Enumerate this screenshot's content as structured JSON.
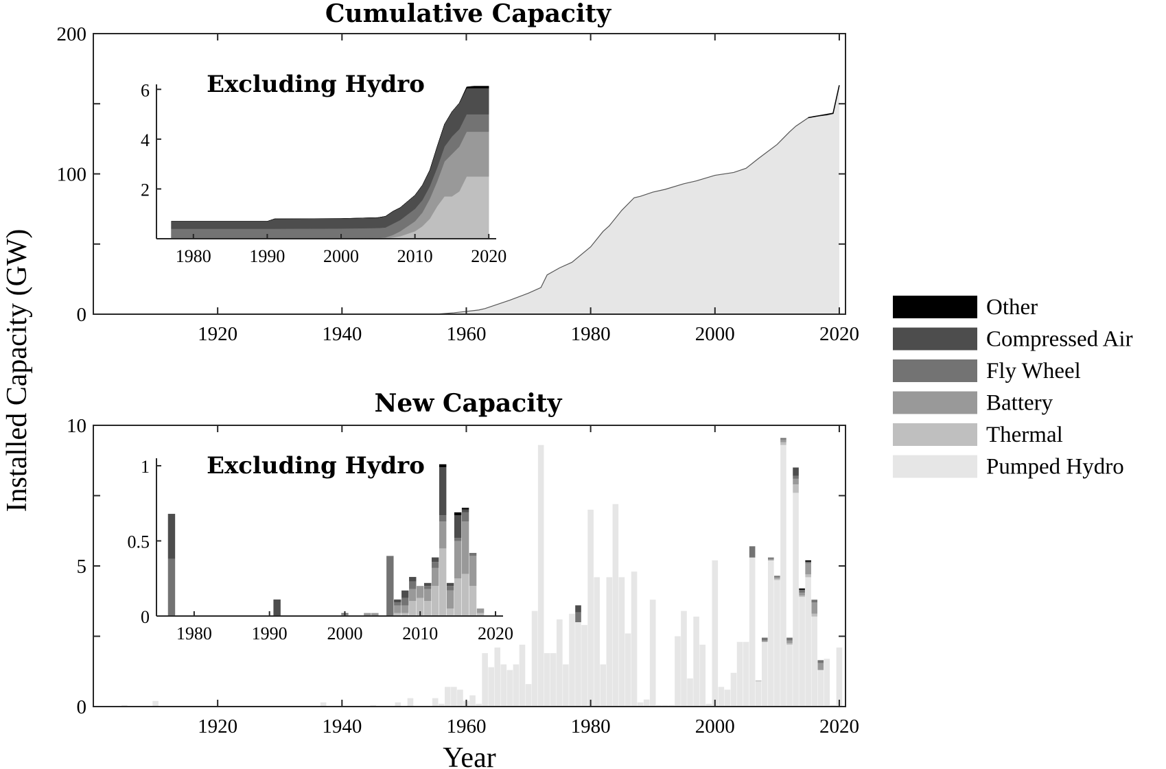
{
  "figure": {
    "ylabel": "Installed Capacity (GW)",
    "xlabel": "Year"
  },
  "legend": {
    "placement": "right",
    "items": [
      {
        "label": "Other",
        "color": "#000000"
      },
      {
        "label": "Compressed Air",
        "color": "#4d4d4d"
      },
      {
        "label": "Fly Wheel",
        "color": "#737373"
      },
      {
        "label": "Battery",
        "color": "#999999"
      },
      {
        "label": "Thermal",
        "color": "#bfbfbf"
      },
      {
        "label": "Pumped Hydro",
        "color": "#e6e6e6"
      }
    ]
  },
  "chart_data": [
    {
      "id": "cumulative-main",
      "type": "area",
      "title": "Cumulative Capacity",
      "xlim": [
        1900,
        2021
      ],
      "ylim": [
        0,
        200
      ],
      "xticks": [
        1920,
        1940,
        1960,
        1980,
        2000,
        2020
      ],
      "yticks": [
        0,
        100,
        200
      ],
      "yticks_unlabeled": [
        50,
        150
      ],
      "series": [
        {
          "name": "Pumped Hydro",
          "x": [
            1900,
            1955,
            1958,
            1960,
            1962,
            1963,
            1965,
            1967,
            1970,
            1972,
            1973,
            1975,
            1977,
            1980,
            1982,
            1983,
            1985,
            1987,
            1988,
            1990,
            1992,
            1995,
            1997,
            2000,
            2003,
            2005,
            2007,
            2010,
            2012,
            2013,
            2015,
            2016,
            2018,
            2019,
            2020
          ],
          "y": [
            0,
            0,
            1,
            2,
            3,
            4,
            7,
            10,
            15,
            19,
            28,
            33,
            37,
            48,
            59,
            63,
            74,
            83,
            84,
            87,
            89,
            93,
            95,
            99,
            101,
            104,
            111,
            121,
            130,
            134,
            140,
            141,
            142,
            143,
            163
          ]
        },
        {
          "name": "Other",
          "x": [
            2015,
            2019,
            2020
          ],
          "y": [
            0.1,
            0.2,
            0.2
          ]
        }
      ]
    },
    {
      "id": "cumulative-inset",
      "type": "area",
      "title": "Excluding Hydro",
      "xlim": [
        1975,
        2021
      ],
      "ylim": [
        0,
        6.2
      ],
      "xticks": [
        1980,
        1990,
        2000,
        2010,
        2020
      ],
      "yticks": [
        2,
        4,
        6
      ],
      "x": [
        1977,
        1978,
        1990,
        1991,
        2000,
        2005,
        2006,
        2007,
        2008,
        2010,
        2011,
        2012,
        2013,
        2014,
        2015,
        2016,
        2017,
        2018,
        2019,
        2020
      ],
      "series": [
        {
          "name": "Pumped Hydro",
          "values": [
            0,
            0,
            0,
            0,
            0,
            0,
            0,
            0,
            0,
            0,
            0,
            0,
            0,
            0,
            0,
            0,
            0,
            0,
            0,
            0
          ]
        },
        {
          "name": "Thermal",
          "values": [
            0,
            0,
            0,
            0,
            0,
            0,
            0,
            0.05,
            0.1,
            0.3,
            0.5,
            0.8,
            1.3,
            1.7,
            1.7,
            1.9,
            2.5,
            2.5,
            2.5,
            2.5
          ]
        },
        {
          "name": "Battery",
          "values": [
            0,
            0,
            0,
            0,
            0.01,
            0.03,
            0.05,
            0.1,
            0.2,
            0.4,
            0.55,
            0.8,
            1.0,
            1.4,
            1.7,
            1.8,
            1.8,
            1.8,
            1.8,
            1.8
          ]
        },
        {
          "name": "Fly Wheel",
          "values": [
            0.4,
            0.4,
            0.4,
            0.4,
            0.4,
            0.4,
            0.4,
            0.45,
            0.45,
            0.5,
            0.5,
            0.5,
            0.55,
            0.6,
            0.7,
            0.7,
            0.7,
            0.7,
            0.7,
            0.7
          ]
        },
        {
          "name": "Compressed Air",
          "values": [
            0.3,
            0.3,
            0.3,
            0.4,
            0.4,
            0.42,
            0.45,
            0.5,
            0.5,
            0.55,
            0.6,
            0.65,
            0.85,
            0.9,
            1.0,
            1.05,
            1.05,
            1.05,
            1.05,
            1.05
          ]
        },
        {
          "name": "Other",
          "values": [
            0,
            0,
            0,
            0,
            0,
            0,
            0,
            0,
            0,
            0,
            0,
            0,
            0,
            0,
            0,
            0,
            0.05,
            0.08,
            0.08,
            0.08
          ]
        }
      ]
    },
    {
      "id": "new-main",
      "type": "bar",
      "title": "New Capacity",
      "xlim": [
        1900,
        2021
      ],
      "ylim": [
        0,
        10
      ],
      "xticks": [
        1920,
        1940,
        1960,
        1980,
        2000,
        2020
      ],
      "yticks": [
        0,
        5,
        10
      ],
      "yticks_unlabeled": [
        2.5,
        7.5
      ],
      "x": [
        1905,
        1910,
        1937,
        1945,
        1949,
        1951,
        1955,
        1956,
        1957,
        1958,
        1959,
        1960,
        1961,
        1962,
        1963,
        1964,
        1965,
        1966,
        1967,
        1968,
        1969,
        1970,
        1971,
        1972,
        1973,
        1974,
        1975,
        1976,
        1977,
        1978,
        1979,
        1980,
        1981,
        1982,
        1983,
        1984,
        1985,
        1986,
        1987,
        1988,
        1989,
        1990,
        1991,
        1992,
        1993,
        1994,
        1995,
        1996,
        1997,
        1998,
        1999,
        2000,
        2001,
        2002,
        2003,
        2004,
        2005,
        2006,
        2007,
        2008,
        2009,
        2010,
        2011,
        2012,
        2013,
        2014,
        2015,
        2016,
        2017,
        2018,
        2019,
        2020
      ],
      "series": [
        {
          "name": "Pumped Hydro",
          "values": [
            0.05,
            0.2,
            0.15,
            0.05,
            0.15,
            0.3,
            0.3,
            0.1,
            0.7,
            0.7,
            0.6,
            0.2,
            0.4,
            0.1,
            1.9,
            1.4,
            2.1,
            1.5,
            1.3,
            1.5,
            2.2,
            0.8,
            3.4,
            9.3,
            1.9,
            1.9,
            3.1,
            1.5,
            3.3,
            3.0,
            2.9,
            7.0,
            4.6,
            1.5,
            4.6,
            7.2,
            4.6,
            2.6,
            4.8,
            0.15,
            0.25,
            3.8,
            0.05,
            0.05,
            0.05,
            2.5,
            3.4,
            1.0,
            3.2,
            2.2,
            0.1,
            5.2,
            0.7,
            0.6,
            1.2,
            2.3,
            2.3,
            5.3,
            0.9,
            2.3,
            5.2,
            4.5,
            9.3,
            2.2,
            7.6,
            3.9,
            4.6,
            3.2,
            1.3,
            1.7,
            0.05,
            2.1
          ]
        },
        {
          "name": "Thermal",
          "values": [
            0,
            0,
            0,
            0,
            0,
            0,
            0,
            0,
            0,
            0,
            0,
            0,
            0,
            0,
            0,
            0,
            0,
            0,
            0,
            0,
            0,
            0,
            0,
            0,
            0,
            0,
            0,
            0,
            0,
            0,
            0,
            0,
            0,
            0,
            0,
            0,
            0,
            0,
            0,
            0,
            0,
            0,
            0,
            0,
            0,
            0,
            0,
            0,
            0,
            0,
            0,
            0,
            0,
            0,
            0,
            0,
            0,
            0,
            0,
            0,
            0,
            0.05,
            0.1,
            0.05,
            0.3,
            0.05,
            0.1,
            0.1,
            0,
            0,
            0,
            0
          ]
        },
        {
          "name": "Battery",
          "values": [
            0,
            0,
            0,
            0,
            0,
            0,
            0,
            0,
            0,
            0,
            0,
            0,
            0,
            0,
            0,
            0,
            0,
            0,
            0,
            0,
            0,
            0,
            0,
            0,
            0,
            0,
            0,
            0,
            0,
            0,
            0,
            0,
            0,
            0,
            0,
            0,
            0,
            0,
            0,
            0,
            0,
            0,
            0,
            0,
            0,
            0,
            0,
            0,
            0,
            0,
            0,
            0,
            0,
            0,
            0,
            0,
            0,
            0,
            0.02,
            0.05,
            0.05,
            0.05,
            0.1,
            0.1,
            0.2,
            0.1,
            0.4,
            0.4,
            0.25,
            0,
            0,
            0
          ]
        },
        {
          "name": "Fly Wheel",
          "values": [
            0,
            0,
            0,
            0,
            0,
            0,
            0,
            0,
            0,
            0,
            0,
            0,
            0,
            0,
            0,
            0,
            0,
            0,
            0,
            0,
            0,
            0,
            0,
            0,
            0,
            0,
            0,
            0,
            0,
            0.35,
            0,
            0,
            0,
            0,
            0,
            0,
            0,
            0,
            0,
            0,
            0,
            0,
            0,
            0,
            0,
            0,
            0,
            0,
            0,
            0,
            0,
            0,
            0,
            0,
            0,
            0,
            0,
            0.4,
            0,
            0.1,
            0.05,
            0.05,
            0.05,
            0.1,
            0.1,
            0.1,
            0.05,
            0.1,
            0.1,
            0,
            0,
            0
          ]
        },
        {
          "name": "Compressed Air",
          "values": [
            0,
            0,
            0,
            0,
            0,
            0,
            0,
            0,
            0,
            0,
            0,
            0,
            0,
            0,
            0,
            0,
            0,
            0,
            0,
            0,
            0,
            0,
            0,
            0,
            0,
            0,
            0,
            0,
            0,
            0.25,
            0,
            0,
            0,
            0,
            0,
            0,
            0,
            0,
            0,
            0,
            0,
            0,
            0,
            0,
            0,
            0,
            0,
            0,
            0,
            0,
            0,
            0,
            0,
            0,
            0,
            0,
            0,
            0,
            0,
            0,
            0,
            0,
            0,
            0,
            0.3,
            0,
            0,
            0,
            0,
            0,
            0,
            0
          ]
        },
        {
          "name": "Other",
          "values": [
            0,
            0,
            0,
            0,
            0,
            0,
            0,
            0,
            0,
            0,
            0,
            0,
            0,
            0,
            0,
            0,
            0,
            0,
            0,
            0,
            0,
            0,
            0,
            0,
            0,
            0,
            0,
            0,
            0,
            0,
            0,
            0,
            0,
            0,
            0,
            0,
            0,
            0,
            0,
            0,
            0,
            0,
            0,
            0,
            0,
            0,
            0,
            0,
            0,
            0,
            0,
            0,
            0,
            0,
            0,
            0,
            0,
            0,
            0,
            0,
            0,
            0,
            0,
            0,
            0,
            0.05,
            0.05,
            0,
            0,
            0,
            0,
            0
          ]
        }
      ]
    },
    {
      "id": "new-inset",
      "type": "bar",
      "title": "Excluding Hydro",
      "xlim": [
        1975,
        2021
      ],
      "ylim": [
        0,
        1.05
      ],
      "xticks": [
        1980,
        1990,
        2000,
        2010,
        2020
      ],
      "yticks": [
        0,
        0.5,
        1
      ],
      "x": [
        1977,
        1991,
        2000,
        2003,
        2004,
        2006,
        2007,
        2008,
        2009,
        2010,
        2011,
        2012,
        2013,
        2014,
        2015,
        2016,
        2017,
        2018
      ],
      "series": [
        {
          "name": "Pumped Hydro",
          "values": [
            0,
            0,
            0,
            0,
            0,
            0,
            0,
            0,
            0,
            0,
            0,
            0,
            0,
            0,
            0,
            0,
            0,
            0
          ]
        },
        {
          "name": "Thermal",
          "values": [
            0,
            0,
            0,
            0,
            0,
            0,
            0.02,
            0.02,
            0.1,
            0.12,
            0.1,
            0.2,
            0.45,
            0.05,
            0.25,
            0.28,
            0.2,
            0.02
          ]
        },
        {
          "name": "Battery",
          "values": [
            0,
            0,
            0.01,
            0.02,
            0.02,
            0,
            0.05,
            0.05,
            0.08,
            0.08,
            0.08,
            0.12,
            0.18,
            0.12,
            0.25,
            0.35,
            0.2,
            0.03
          ]
        },
        {
          "name": "Fly Wheel",
          "values": [
            0.38,
            0,
            0.01,
            0,
            0,
            0.4,
            0.02,
            0.05,
            0.05,
            0,
            0.02,
            0.04,
            0.04,
            0.03,
            0.02,
            0.06,
            0.02,
            0
          ]
        },
        {
          "name": "Compressed Air",
          "values": [
            0.3,
            0.11,
            0,
            0,
            0,
            0,
            0.02,
            0.05,
            0.03,
            0,
            0.02,
            0.03,
            0.32,
            0.02,
            0.15,
            0.02,
            0,
            0
          ]
        },
        {
          "name": "Other",
          "values": [
            0,
            0,
            0,
            0,
            0,
            0,
            0,
            0,
            0,
            0,
            0,
            0,
            0.02,
            0,
            0.02,
            0.01,
            0,
            0
          ]
        }
      ]
    }
  ]
}
